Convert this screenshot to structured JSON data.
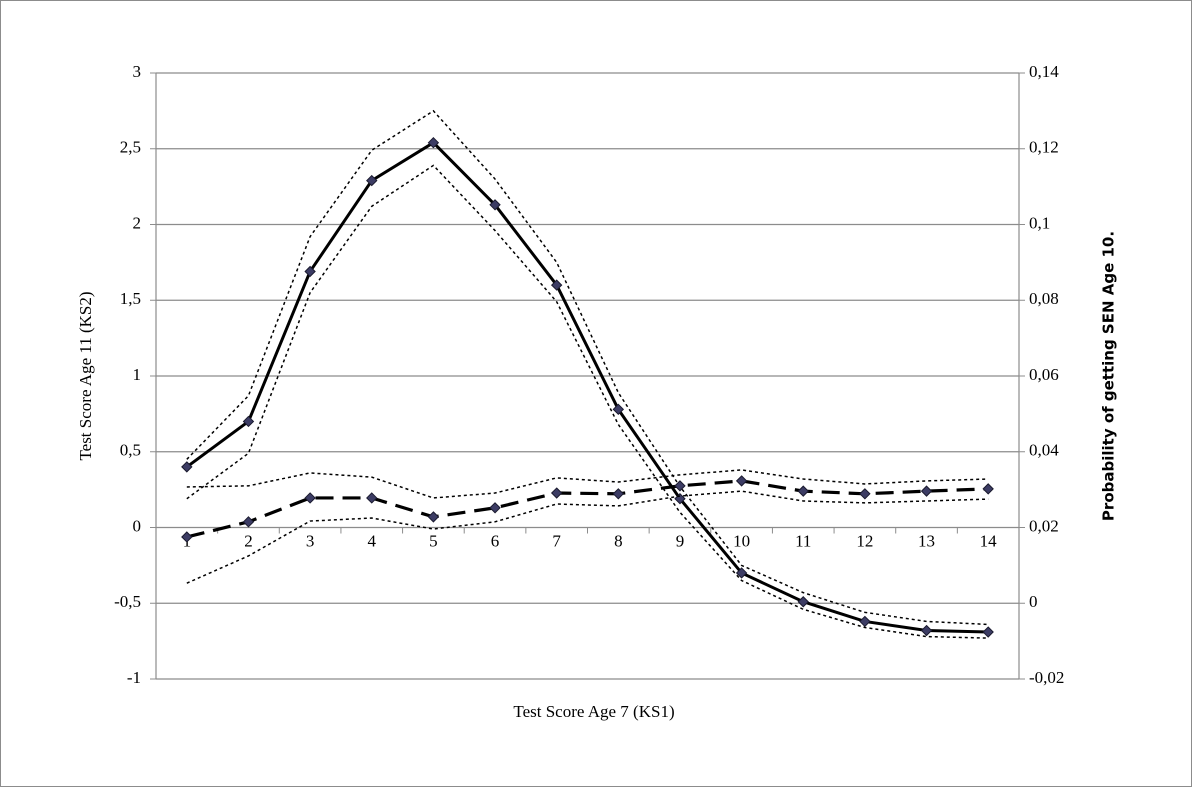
{
  "chart_data": {
    "type": "line",
    "x_label": "Test Score Age 7 (KS1)",
    "y_label": "Test Score Age 11 (KS2)",
    "y2_label": "Probability of getting SEN Age 10.",
    "categories": [
      "1",
      "2",
      "3",
      "4",
      "5",
      "6",
      "7",
      "8",
      "9",
      "10",
      "11",
      "12",
      "13",
      "14"
    ],
    "ylim": [
      -1,
      3
    ],
    "yticks": [
      -1,
      {
        "value": -0.5,
        "label": "-0,5"
      },
      0,
      {
        "value": 0.5,
        "label": "0,5"
      },
      1,
      {
        "value": 1.5,
        "label": "1,5"
      },
      2,
      {
        "value": 2.5,
        "label": "2,5"
      },
      3
    ],
    "y2lim": [
      -0.02,
      0.14
    ],
    "y2ticks": [
      {
        "value": -0.02,
        "label": "-0,02"
      },
      0,
      {
        "value": 0.02,
        "label": "0,02"
      },
      {
        "value": 0.04,
        "label": "0,04"
      },
      {
        "value": 0.06,
        "label": "0,06"
      },
      {
        "value": 0.08,
        "label": "0,08"
      },
      {
        "value": 0.1,
        "label": "0,1"
      },
      {
        "value": 0.12,
        "label": "0,12"
      },
      {
        "value": 0.14,
        "label": "0,14"
      }
    ],
    "grid": true,
    "series": [
      {
        "color": "#000000",
        "style": "solid",
        "marker": "diamond",
        "marker_color": "#3c3c64",
        "values": [
          0.4,
          0.7,
          1.69,
          2.29,
          2.54,
          2.13,
          1.6,
          0.78,
          0.19,
          -0.3,
          -0.49,
          -0.62,
          -0.68,
          -0.69
        ]
      },
      {
        "color": "#000000",
        "style": "dotted",
        "values": [
          0.45,
          0.87,
          1.92,
          2.49,
          2.75,
          2.3,
          1.75,
          0.89,
          0.27,
          -0.25,
          -0.43,
          -0.56,
          -0.62,
          -0.64
        ]
      },
      {
        "color": "#000000",
        "style": "dotted",
        "values": [
          0.19,
          0.49,
          1.55,
          2.12,
          2.39,
          1.96,
          1.49,
          0.68,
          0.1,
          -0.35,
          -0.54,
          -0.66,
          -0.72,
          -0.73
        ]
      },
      {
        "color": "#000000",
        "style": "dashed",
        "marker": "diamond",
        "marker_color": "#3c3c64",
        "axis": "y2",
        "values": [
          0.0175,
          0.0215,
          0.0278,
          0.0278,
          0.0228,
          0.0252,
          0.0291,
          0.0289,
          0.031,
          0.0323,
          0.0296,
          0.0289,
          0.0296,
          0.0302
        ]
      },
      {
        "color": "#000000",
        "style": "dotted",
        "axis": "y2",
        "values": [
          0.0307,
          0.031,
          0.0344,
          0.0333,
          0.0278,
          0.0291,
          0.0331,
          0.032,
          0.0339,
          0.0352,
          0.0328,
          0.0315,
          0.0323,
          0.0328
        ]
      },
      {
        "color": "#000000",
        "style": "dotted",
        "axis": "y2",
        "values": [
          0.0053,
          0.0125,
          0.0217,
          0.0225,
          0.0196,
          0.0215,
          0.0262,
          0.0257,
          0.0283,
          0.0296,
          0.027,
          0.0265,
          0.027,
          0.0275
        ]
      }
    ]
  }
}
